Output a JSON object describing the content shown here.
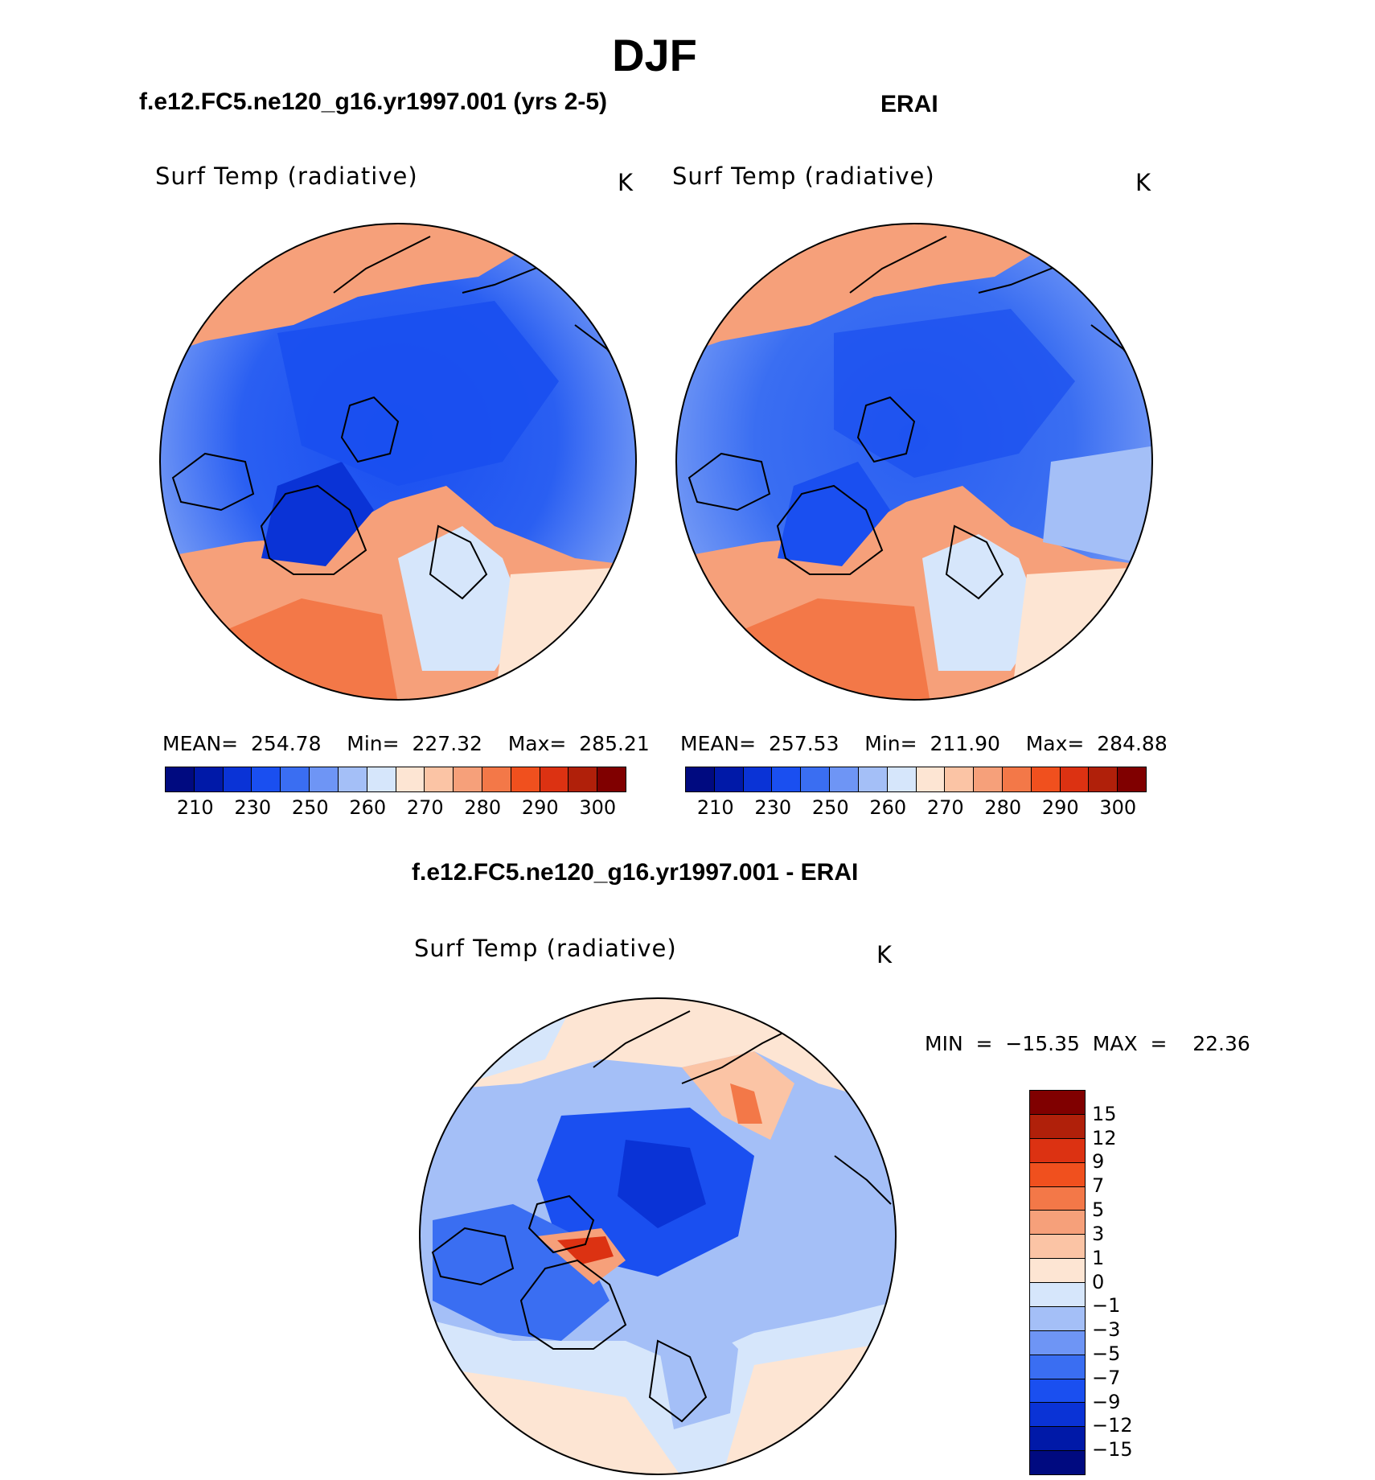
{
  "figure": {
    "season": "DJF",
    "left_title": "f.e12.FC5.ne120_g16.yr1997.001 (yrs 2-5)",
    "right_title": "ERAI",
    "diff_title": "f.e12.FC5.ne120_g16.yr1997.001 - ERAI"
  },
  "left_map": {
    "variable": "Surf Temp (radiative)",
    "units": "K",
    "stats": "MEAN=  254.78    Min=  227.32    Max=  285.21"
  },
  "right_map": {
    "variable": "Surf Temp (radiative)",
    "units": "K",
    "stats": "MEAN=  257.53    Min=  211.90    Max=  284.88"
  },
  "diff_map": {
    "variable": "Surf Temp (radiative)",
    "units": "K",
    "stats": "MIN  =  −15.35  MAX  =    22.36"
  },
  "colorbar_abs": {
    "colors": [
      "#000a80",
      "#0019a8",
      "#0a33d6",
      "#1a4ff0",
      "#3a6ef2",
      "#6e95f5",
      "#a4bff7",
      "#d6e6fb",
      "#fde5d3",
      "#fbc4a5",
      "#f6a07a",
      "#f37848",
      "#f0501e",
      "#dc3212",
      "#b0200a",
      "#800000"
    ],
    "ticks": [
      "210",
      "230",
      "250",
      "260",
      "270",
      "280",
      "290",
      "300"
    ]
  },
  "colorbar_diff": {
    "colors": [
      "#800000",
      "#b0200a",
      "#dc3212",
      "#f0501e",
      "#f37848",
      "#f6a07a",
      "#fbc4a5",
      "#fde5d3",
      "#d6e6fb",
      "#a4bff7",
      "#6e95f5",
      "#3a6ef2",
      "#1a4ff0",
      "#0a33d6",
      "#0019a8",
      "#000a80"
    ],
    "ticks": [
      "15",
      "12",
      "9",
      "7",
      "5",
      "3",
      "1",
      "0",
      "−1",
      "−3",
      "−5",
      "−7",
      "−9",
      "−12",
      "−15"
    ]
  }
}
